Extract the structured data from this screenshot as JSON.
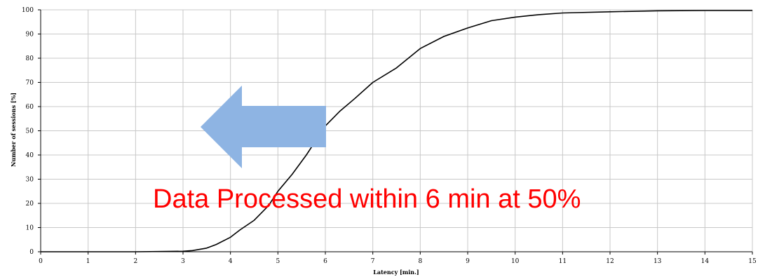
{
  "chart_data": {
    "type": "line",
    "title": "",
    "xlabel": "Latency [min.]",
    "ylabel": "Number of sessions [%]",
    "xlim": [
      0,
      15
    ],
    "ylim": [
      0,
      100
    ],
    "x_ticks": [
      "0",
      "1",
      "2",
      "3",
      "4",
      "5",
      "6",
      "7",
      "8",
      "9",
      "10",
      "11",
      "12",
      "13",
      "14",
      "15"
    ],
    "y_ticks": [
      "0",
      "10",
      "20",
      "30",
      "40",
      "50",
      "60",
      "70",
      "80",
      "90",
      "100"
    ],
    "grid": true,
    "legend": "none",
    "series": [
      {
        "color": "#000000",
        "x": [
          0,
          1,
          2,
          3,
          3.2,
          3.5,
          3.7,
          4,
          4.2,
          4.5,
          4.8,
          5,
          5.3,
          5.6,
          5.8,
          6,
          6.3,
          6.6,
          7,
          7.5,
          8,
          8.5,
          9,
          9.5,
          10,
          10.5,
          11,
          12,
          13,
          14,
          15
        ],
        "y": [
          0,
          0,
          0,
          0.2,
          0.5,
          1.5,
          3,
          6,
          9,
          13,
          19,
          25,
          32,
          40,
          46,
          52,
          58,
          63,
          70,
          76,
          84,
          89,
          92.5,
          95.5,
          97,
          98,
          98.7,
          99.2,
          99.6,
          99.7,
          99.7
        ]
      }
    ],
    "annotations": {
      "text": "Data Processed within 6 min at 50%",
      "text_color": "#ff0000",
      "arrow_color": "#8eb4e3",
      "arrow_direction": "left"
    }
  }
}
